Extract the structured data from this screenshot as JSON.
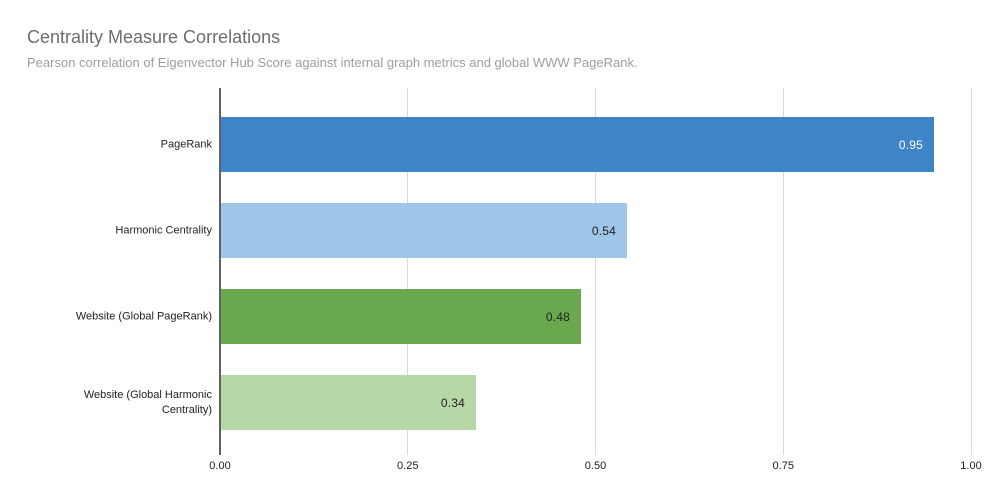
{
  "header": {
    "title": "Centrality Measure Correlations",
    "subtitle": "Pearson correlation of Eigenvector Hub Score against internal graph metrics and global WWW PageRank."
  },
  "colors": {
    "title_text": "#6d6d6d",
    "subtitle_text": "#9e9e9e",
    "axis_line": "#616161",
    "gridline": "#d9d9d9",
    "tick_label_text": "#222222",
    "category_label_text": "#222222"
  },
  "chart_data": {
    "type": "bar",
    "orientation": "horizontal",
    "title": "Centrality Measure Correlations",
    "subtitle": "Pearson correlation of Eigenvector Hub Score against internal graph metrics and global WWW PageRank.",
    "xlabel": "",
    "ylabel": "",
    "xlim": [
      0,
      1.0
    ],
    "x_ticks": [
      0,
      0.25,
      0.5,
      0.75,
      1.0
    ],
    "x_tick_labels": [
      "0.00",
      "0.25",
      "0.50",
      "0.75",
      "1.00"
    ],
    "grid": true,
    "legend": false,
    "categories": [
      "PageRank",
      "Harmonic Centrality",
      "Website (Global PageRank)",
      "Website (Global Harmonic Centrality)"
    ],
    "values": [
      0.95,
      0.54,
      0.48,
      0.34
    ],
    "bars": [
      {
        "category_display": "PageRank",
        "value": 0.95,
        "display_value": "0.95",
        "color": "#3d85c6",
        "value_label_color": "#ffffff"
      },
      {
        "category_display": "Harmonic Centrality",
        "value": 0.54,
        "display_value": "0.54",
        "color": "#9fc5e8",
        "value_label_color": "#212121"
      },
      {
        "category_display": "Website (Global PageRank)",
        "value": 0.48,
        "display_value": "0.48",
        "color": "#6aa84f",
        "value_label_color": "#212121"
      },
      {
        "category_display": "Website (Global Harmonic\nCentrality)",
        "value": 0.34,
        "display_value": "0.34",
        "color": "#b6d7a8",
        "value_label_color": "#212121"
      }
    ]
  }
}
